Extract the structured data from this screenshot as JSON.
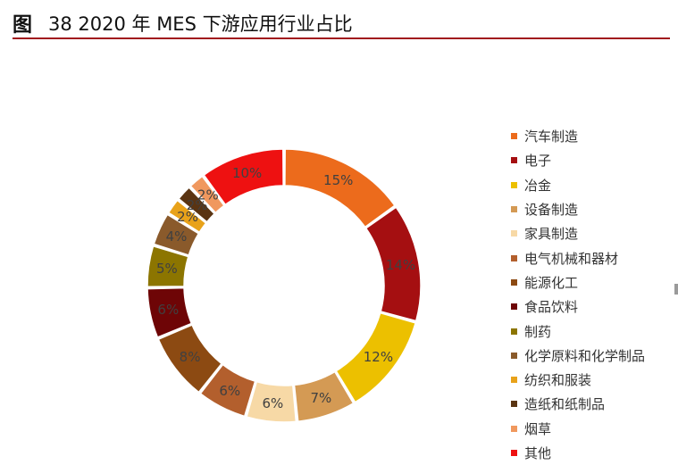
{
  "title": {
    "prefix": "图",
    "text": "38 2020 年 MES 下游应用行业占比"
  },
  "chart_data": {
    "type": "pie",
    "variant": "donut",
    "title": "38 2020 年 MES 下游应用行业占比",
    "legend_position": "right",
    "slices": [
      {
        "label": "汽车制造",
        "value": 15,
        "display": "15%",
        "color": "#ec6b1c"
      },
      {
        "label": "电子",
        "value": 14,
        "display": "14%",
        "color": "#a50f11"
      },
      {
        "label": "冶金",
        "value": 12,
        "display": "12%",
        "color": "#ecc000"
      },
      {
        "label": "设备制造",
        "value": 7,
        "display": "7%",
        "color": "#d49a54"
      },
      {
        "label": "家具制造",
        "value": 6,
        "display": "6%",
        "color": "#f7d9a6"
      },
      {
        "label": "电气机械和器材",
        "value": 6,
        "display": "6%",
        "color": "#b35f2d"
      },
      {
        "label": "能源化工",
        "value": 8,
        "display": "8%",
        "color": "#8c4a12"
      },
      {
        "label": "食品饮料",
        "value": 6,
        "display": "6%",
        "color": "#6e0506"
      },
      {
        "label": "制药",
        "value": 5,
        "display": "5%",
        "color": "#8c7500"
      },
      {
        "label": "化学原料和化学制品",
        "value": 4,
        "display": "4%",
        "color": "#8a5a2b"
      },
      {
        "label": "纺织和服装",
        "value": 2,
        "display": "2%",
        "color": "#e8a21a"
      },
      {
        "label": "造纸和纸制品",
        "value": 2,
        "display": "2%",
        "color": "#5a3412"
      },
      {
        "label": "烟草",
        "value": 2,
        "display": "2%",
        "color": "#f0985e"
      },
      {
        "label": "其他",
        "value": 10,
        "display": "10%",
        "color": "#ee1111"
      }
    ]
  }
}
